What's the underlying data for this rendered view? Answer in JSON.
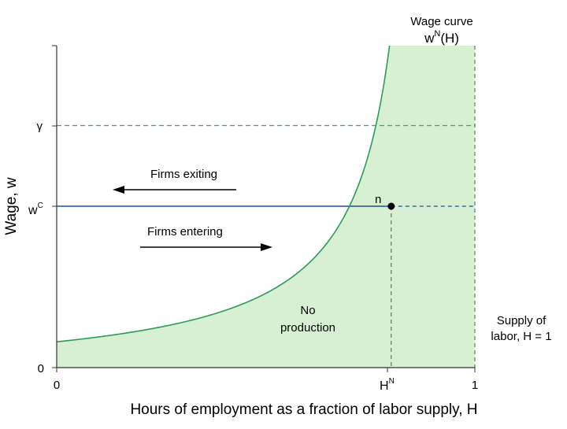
{
  "figure": {
    "x_axis_title": "Hours of employment as a fraction of labor supply, H",
    "y_axis_title": "Wage, w",
    "x_ticks": {
      "origin": "0",
      "hn": "H",
      "hn_sup": "N",
      "one": "1"
    },
    "y_ticks": {
      "origin": "0",
      "wc": "w",
      "wc_sup": "C",
      "gamma": "γ"
    },
    "wage_curve": {
      "line1": "Wage curve",
      "line2_pre": "w",
      "line2_sup": "N",
      "line2_post": "(H)"
    },
    "point_label": "n",
    "firms_exiting": "Firms exiting",
    "firms_entering": "Firms entering",
    "no_production_1": "No",
    "no_production_2": "production",
    "supply_line1": "Supply of",
    "supply_line2": "labor, H = 1"
  },
  "chart_data": {
    "type": "line",
    "x_range": [
      0,
      1
    ],
    "curve_params": {
      "a": 0.08,
      "c": 0.12,
      "b": 0.9
    },
    "w_c": 0.5,
    "gamma": 0.75,
    "h_n": 0.8,
    "colors": {
      "curve": "#2e9a5a",
      "fill": "#d7f0d2",
      "gamma_line": "#3aa679",
      "wc_line": "#1f4fa8",
      "wc_dashed": "#1f4fa8",
      "vertical_dashed": "#555555",
      "axis": "#333333"
    }
  }
}
